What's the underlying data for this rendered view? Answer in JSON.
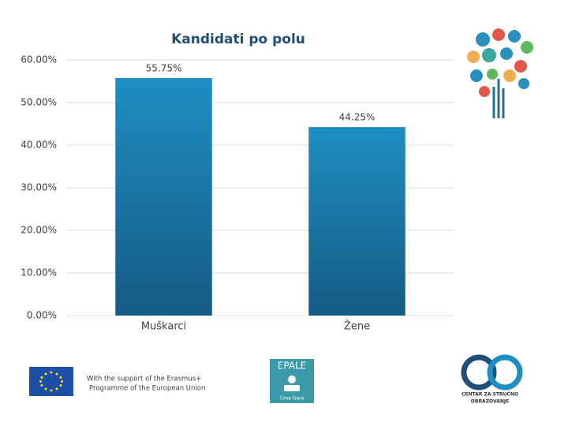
{
  "chart_data": {
    "type": "bar",
    "title": "Kandidati po polu",
    "categories": [
      "Muškarci",
      "Žene"
    ],
    "values": [
      55.75,
      44.25
    ],
    "value_labels": [
      "55.75%",
      "44.25%"
    ],
    "color": "#1a7aab",
    "ylim": [
      0,
      60
    ],
    "yticks": [
      {
        "value": 0,
        "label": "0.00%"
      },
      {
        "value": 10,
        "label": "10.00%"
      },
      {
        "value": 20,
        "label": "20.00%"
      },
      {
        "value": 30,
        "label": "30.00%"
      },
      {
        "value": 40,
        "label": "40.00%"
      },
      {
        "value": 50,
        "label": "50.00%"
      },
      {
        "value": 60,
        "label": "60.00%"
      }
    ],
    "grid": true
  },
  "footer": {
    "support_line_1": "With the support of the Erasmus+",
    "support_line_2": "Programme of the European Union",
    "epale": "EPALE",
    "epale_country": "Crna Gora",
    "centar_line_1": "CENTAR ZA STRUČNO",
    "centar_line_2": "OBRAZOVANJE"
  }
}
